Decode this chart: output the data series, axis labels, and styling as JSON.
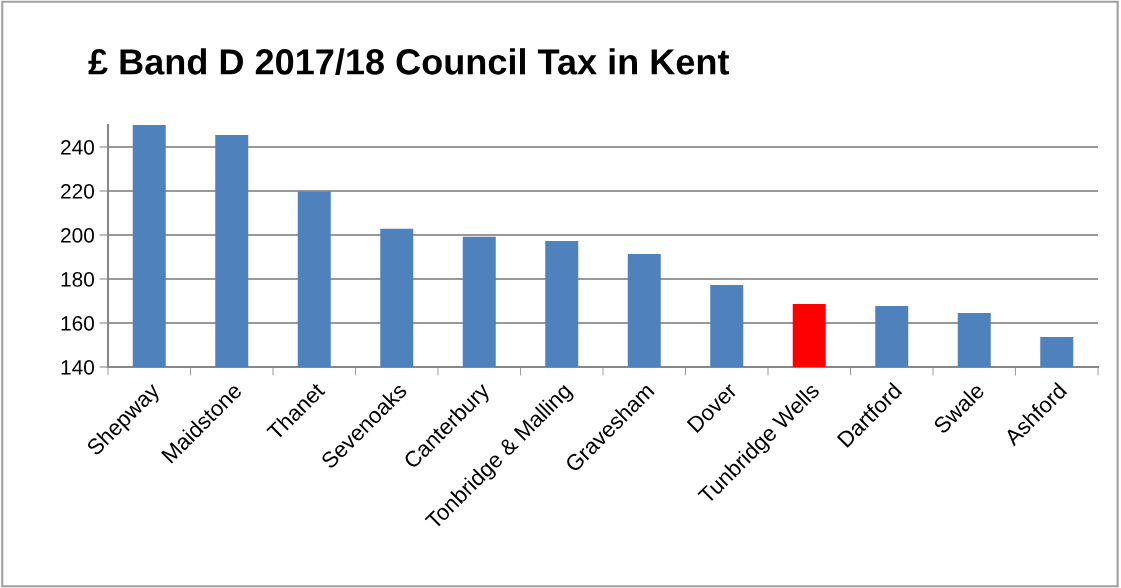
{
  "chart_data": {
    "type": "bar",
    "title": "£ Band D 2017/18 Council Tax in Kent",
    "categories": [
      "Shepway",
      "Maidstone",
      "Thanet",
      "Sevenoaks",
      "Canterbury",
      "Tonbridge & Malling",
      "Gravesham",
      "Dover",
      "Tunbridge Wells",
      "Dartford",
      "Swale",
      "Ashford"
    ],
    "values": [
      250,
      245.5,
      219.8,
      202.8,
      199.2,
      197.3,
      191.4,
      177.3,
      168.6,
      167.7,
      164.5,
      153.6
    ],
    "colors": [
      "#4f81bd",
      "#4f81bd",
      "#4f81bd",
      "#4f81bd",
      "#4f81bd",
      "#4f81bd",
      "#4f81bd",
      "#4f81bd",
      "#ff0000",
      "#4f81bd",
      "#4f81bd",
      "#4f81bd"
    ],
    "ylim": [
      140,
      250
    ],
    "yticks": [
      140,
      160,
      180,
      200,
      220,
      240
    ],
    "grid": "y"
  }
}
